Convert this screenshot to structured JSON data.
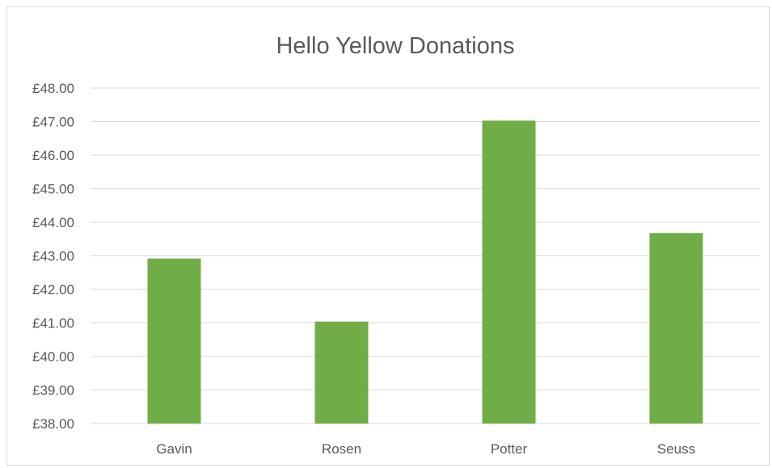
{
  "colors": {
    "bar": "#70ad47",
    "grid": "#d9d9d9",
    "text": "#595959"
  },
  "chart_data": {
    "type": "bar",
    "title": "Hello Yellow Donations",
    "xlabel": "",
    "ylabel": "",
    "categories": [
      "Gavin",
      "Rosen",
      "Potter",
      "Seuss"
    ],
    "values": [
      42.92,
      41.04,
      47.03,
      43.68
    ],
    "ylim": [
      38,
      48
    ],
    "ytick_step": 1,
    "ytick_labels": [
      "£38.00",
      "£39.00",
      "£40.00",
      "£41.00",
      "£42.00",
      "£43.00",
      "£44.00",
      "£45.00",
      "£46.00",
      "£47.00",
      "£48.00"
    ],
    "grid": true,
    "legend": "none"
  }
}
